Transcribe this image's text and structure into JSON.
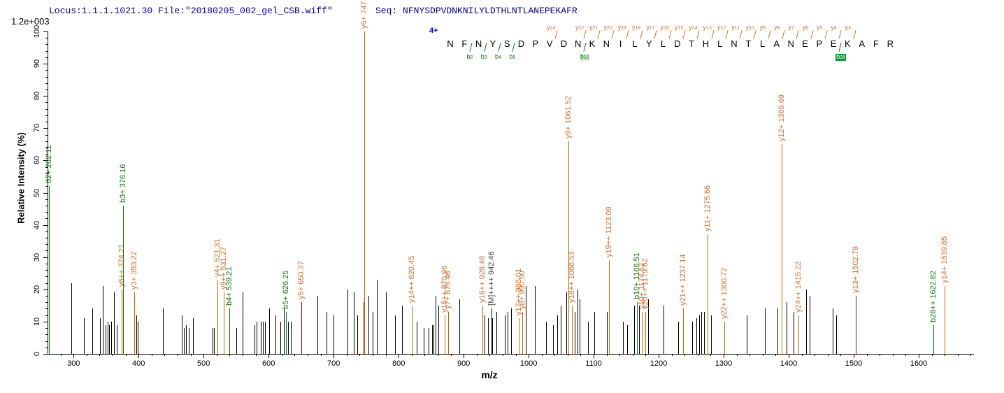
{
  "header": {
    "locus_file": "Locus:1.1.1.1021.30 File:\"20180205_002_gel_CSB.wiff\"",
    "seq_label": "Seq:",
    "sequence": "NFNYSDPVDNKNILYLDTHLNTLANEPEKAFR"
  },
  "chart_data": {
    "type": "bar",
    "subtype": "ms2-fragment-spectrum",
    "title": "",
    "xlabel": "m/z",
    "ylabel": "Relative  Intensity (%)",
    "y_scale_note": "1.2e+003",
    "charge_label": "4+",
    "xlim": [
      261,
      1685
    ],
    "ylim": [
      0,
      100
    ],
    "x_major_ticks": [
      300,
      400,
      500,
      600,
      700,
      800,
      900,
      1000,
      1100,
      1200,
      1300,
      1400,
      1500,
      1600
    ],
    "x_minor_step": 20,
    "y_major_step": 10,
    "y_minor_step": 2,
    "grid": false,
    "sequence": "NFNYSDPVDNKNILYLDTHLNTLANEPEKAFR",
    "y_ion_markers": [
      {
        "n": 24,
        "before_index": 8
      },
      {
        "n": 22,
        "before_index": 10
      },
      {
        "n": 21,
        "before_index": 11
      },
      {
        "n": 20,
        "before_index": 12
      },
      {
        "n": 19,
        "before_index": 13
      },
      {
        "n": 18,
        "before_index": 14
      },
      {
        "n": 17,
        "before_index": 15
      },
      {
        "n": 16,
        "before_index": 16
      },
      {
        "n": 15,
        "before_index": 17
      },
      {
        "n": 14,
        "before_index": 18
      },
      {
        "n": 13,
        "before_index": 19
      },
      {
        "n": 12,
        "before_index": 20
      },
      {
        "n": 11,
        "before_index": 21
      },
      {
        "n": 10,
        "before_index": 22
      },
      {
        "n": 9,
        "before_index": 23
      },
      {
        "n": 8,
        "before_index": 24
      },
      {
        "n": 7,
        "before_index": 25
      },
      {
        "n": 6,
        "before_index": 26
      },
      {
        "n": 5,
        "before_index": 27
      },
      {
        "n": 4,
        "before_index": 28
      },
      {
        "n": 3,
        "before_index": 29
      }
    ],
    "b_ion_markers": [
      {
        "n": 2,
        "after_index": 1,
        "highlight": "none"
      },
      {
        "n": 3,
        "after_index": 2,
        "highlight": "none"
      },
      {
        "n": 4,
        "after_index": 3,
        "highlight": "none"
      },
      {
        "n": 5,
        "after_index": 4,
        "highlight": "none"
      },
      {
        "n": 10,
        "after_index": 9,
        "highlight": "light"
      },
      {
        "n": 28,
        "after_index": 27,
        "highlight": "strong"
      }
    ],
    "labeled_peaks": [
      {
        "label": "b2+ 262.11",
        "mz": 262.11,
        "intensity": 52,
        "type": "b"
      },
      {
        "label": "y6++ 374.21",
        "mz": 374.21,
        "intensity": 20,
        "type": "y"
      },
      {
        "label": "b3+ 376.16",
        "mz": 376.16,
        "intensity": 46,
        "type": "b"
      },
      {
        "label": "y3+ 393.22",
        "mz": 393.22,
        "intensity": 19,
        "type": "y"
      },
      {
        "label": "y4+ 521.31",
        "mz": 521.31,
        "intensity": 23,
        "type": "y"
      },
      {
        "label": "y9++ 531.27",
        "mz": 531.27,
        "intensity": 19,
        "type": "y"
      },
      {
        "label": "b4+ 539.21",
        "mz": 539.21,
        "intensity": 14,
        "type": "b"
      },
      {
        "label": "b5+ 626.25",
        "mz": 626.25,
        "intensity": 13,
        "type": "b"
      },
      {
        "label": "y5+ 650.37",
        "mz": 650.37,
        "intensity": 16,
        "type": "y",
        "stem": "darkred"
      },
      {
        "label": "y6+ 747.41",
        "mz": 747.41,
        "intensity": 100,
        "type": "y"
      },
      {
        "label": "y14++ 820.45",
        "mz": 820.45,
        "intensity": 15,
        "type": "y"
      },
      {
        "label": "y15++ 870.96",
        "mz": 870.96,
        "intensity": 12,
        "type": "y"
      },
      {
        "label": "y7+ 876.46",
        "mz": 876.46,
        "intensity": 13,
        "type": "y"
      },
      {
        "label": "y16++ 928.48",
        "mz": 928.48,
        "intensity": 15,
        "type": "y"
      },
      {
        "label": "[M]++++ 942.46",
        "mz": 942.46,
        "intensity": 14,
        "type": "M"
      },
      {
        "label": "y17++ 985.01",
        "mz": 985.01,
        "intensity": 11,
        "type": "y"
      },
      {
        "label": "y8+ 990.50",
        "mz": 990.5,
        "intensity": 13,
        "type": "y"
      },
      {
        "label": "y9+ 1061.52",
        "mz": 1061.52,
        "intensity": 66,
        "type": "y"
      },
      {
        "label": "y18++ 1066.53",
        "mz": 1066.53,
        "intensity": 15,
        "type": "y"
      },
      {
        "label": "y19++ 1123.08",
        "mz": 1123.08,
        "intensity": 29,
        "type": "y"
      },
      {
        "label": "b10+ 1166.51",
        "mz": 1166.51,
        "intensity": 16,
        "type": "b"
      },
      {
        "label": "y10+ 1174.62",
        "mz": 1174.62,
        "intensity": 13,
        "type": "y"
      },
      {
        "label": "y20++ 1179.62",
        "mz": 1179.62,
        "intensity": 13,
        "type": "y"
      },
      {
        "label": "y21++ 1237.14",
        "mz": 1237.14,
        "intensity": 14,
        "type": "y"
      },
      {
        "label": "y11+ 1275.66",
        "mz": 1275.66,
        "intensity": 37,
        "type": "y"
      },
      {
        "label": "y22++ 1300.72",
        "mz": 1300.72,
        "intensity": 10,
        "type": "y"
      },
      {
        "label": "y12+ 1389.69",
        "mz": 1389.69,
        "intensity": 65,
        "type": "y"
      },
      {
        "label": "y24++ 1415.22",
        "mz": 1415.22,
        "intensity": 12,
        "type": "y"
      },
      {
        "label": "y13+ 1502.78",
        "mz": 1502.78,
        "intensity": 18,
        "type": "y",
        "stem": "darkred"
      },
      {
        "label": "b28++ 1622.82",
        "mz": 1622.82,
        "intensity": 9,
        "type": "b"
      },
      {
        "label": "y14+ 1639.85",
        "mz": 1639.85,
        "intensity": 21,
        "type": "y"
      }
    ],
    "unlabeled_peaks": [
      [
        297,
        22
      ],
      [
        316,
        11
      ],
      [
        329,
        14
      ],
      [
        341,
        11
      ],
      [
        345,
        21
      ],
      [
        349,
        9
      ],
      [
        352,
        10
      ],
      [
        355,
        9
      ],
      [
        358,
        10
      ],
      [
        362,
        19
      ],
      [
        366,
        9
      ],
      [
        396,
        12
      ],
      [
        399,
        10
      ],
      [
        437,
        14
      ],
      [
        466,
        12
      ],
      [
        470,
        8
      ],
      [
        473,
        9
      ],
      [
        477,
        8
      ],
      [
        484,
        11
      ],
      [
        514,
        8
      ],
      [
        516,
        8
      ],
      [
        550,
        8
      ],
      [
        560,
        19
      ],
      [
        578,
        9
      ],
      [
        582,
        10
      ],
      [
        588,
        10
      ],
      [
        591,
        10
      ],
      [
        594,
        10
      ],
      [
        601,
        14
      ],
      [
        611,
        12
      ],
      [
        618,
        10
      ],
      [
        623,
        14
      ],
      [
        630,
        10
      ],
      [
        634,
        10
      ],
      [
        675,
        18
      ],
      [
        689,
        13
      ],
      [
        700,
        12
      ],
      [
        721,
        20
      ],
      [
        731,
        19
      ],
      [
        736,
        12
      ],
      [
        754,
        18
      ],
      [
        760,
        13
      ],
      [
        767,
        23
      ],
      [
        781,
        19
      ],
      [
        794,
        12
      ],
      [
        805,
        15
      ],
      [
        828,
        10
      ],
      [
        839,
        8
      ],
      [
        846,
        8
      ],
      [
        851,
        9
      ],
      [
        854,
        9
      ],
      [
        857,
        18
      ],
      [
        861,
        15
      ],
      [
        893,
        17
      ],
      [
        932,
        12
      ],
      [
        937,
        11
      ],
      [
        944,
        11
      ],
      [
        950,
        13
      ],
      [
        963,
        12
      ],
      [
        968,
        13
      ],
      [
        973,
        14
      ],
      [
        996,
        21
      ],
      [
        1010,
        21
      ],
      [
        1027,
        10
      ],
      [
        1038,
        9
      ],
      [
        1044,
        12
      ],
      [
        1049,
        15
      ],
      [
        1058,
        19
      ],
      [
        1071,
        13
      ],
      [
        1075,
        20
      ],
      [
        1078,
        17
      ],
      [
        1091,
        10
      ],
      [
        1101,
        13
      ],
      [
        1120,
        13
      ],
      [
        1145,
        10
      ],
      [
        1152,
        9
      ],
      [
        1162,
        15
      ],
      [
        1170,
        15
      ],
      [
        1184,
        17
      ],
      [
        1208,
        15
      ],
      [
        1230,
        10
      ],
      [
        1252,
        10
      ],
      [
        1258,
        11
      ],
      [
        1262,
        12
      ],
      [
        1266,
        13
      ],
      [
        1270,
        13
      ],
      [
        1281,
        12
      ],
      [
        1335,
        12
      ],
      [
        1363,
        14
      ],
      [
        1383,
        14
      ],
      [
        1397,
        16
      ],
      [
        1408,
        13
      ],
      [
        1427,
        20
      ],
      [
        1432,
        18
      ],
      [
        1468,
        14
      ],
      [
        1473,
        12
      ]
    ],
    "darkred_unlabeled_peaks": [
      [
        746,
        16
      ]
    ]
  },
  "colors": {
    "b_ion": "#0b7a0b",
    "y_ion": "#cc6600",
    "y_ion_label": "#d4702e",
    "precursor_label": "#444444",
    "darkred_peak": "#991111",
    "noise_peak": "#000000",
    "header_text": "#00008b",
    "charge_text": "#0000cc",
    "highlight_green": "#009933"
  }
}
